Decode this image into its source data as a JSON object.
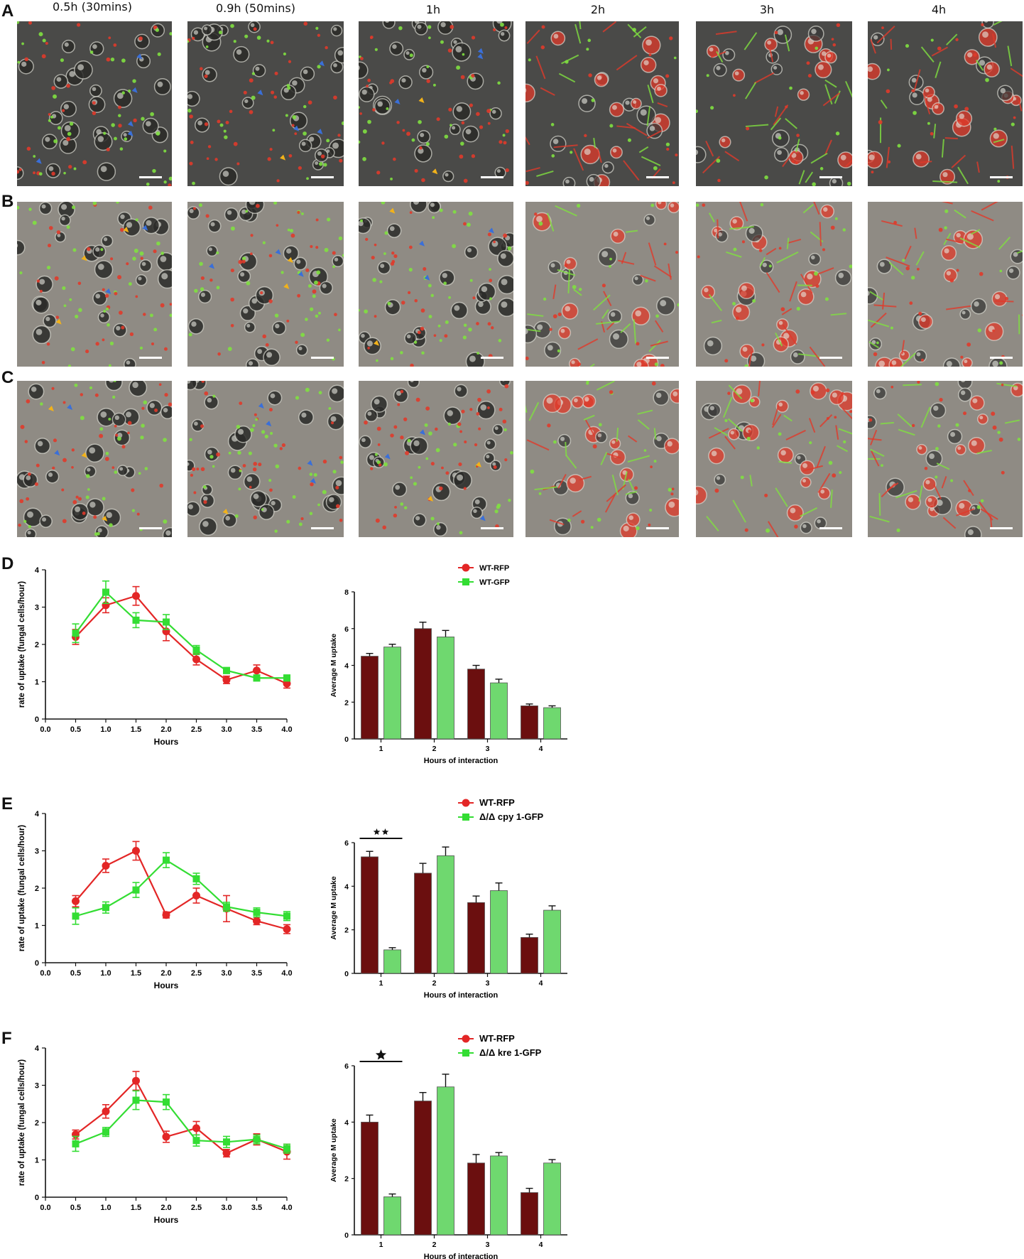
{
  "panel_letters": [
    "A",
    "B",
    "C",
    "D",
    "E",
    "F"
  ],
  "time_labels": [
    "0.5h (30mins)",
    "0.9h (50mins)",
    "1h",
    "2h",
    "3h",
    "4h"
  ],
  "micrograph_colors": {
    "dark_bg": "#4a4a48",
    "light_bg": "#8f8b84",
    "red": "#e03a2a",
    "green": "#7fe040",
    "blue_arrow": "#3a6fd8",
    "yellow_arrow": "#f2b21a"
  },
  "chart_data": [
    {
      "id": "D-line",
      "type": "line",
      "ylabel": "rate of uptake (fungal cells/hour)",
      "xlabel": "Hours",
      "xlim": [
        0,
        4
      ],
      "ylim": [
        0,
        4
      ],
      "xticks": [
        "0.0",
        "0.5",
        "1.0",
        "1.5",
        "2.0",
        "2.5",
        "3.0",
        "3.5",
        "4.0"
      ],
      "yticks": [
        "0",
        "1",
        "2",
        "3",
        "4"
      ],
      "x": [
        0.5,
        1.0,
        1.5,
        2.0,
        2.5,
        3.0,
        3.5,
        4.0
      ],
      "series": [
        {
          "color": "#e32626",
          "marker": "circle",
          "values": [
            2.2,
            3.05,
            3.3,
            2.35,
            1.6,
            1.05,
            1.3,
            0.95
          ],
          "errors": [
            0.2,
            0.2,
            0.25,
            0.25,
            0.15,
            0.1,
            0.15,
            0.12
          ]
        },
        {
          "color": "#33dd33",
          "marker": "square",
          "values": [
            2.3,
            3.4,
            2.65,
            2.6,
            1.85,
            1.3,
            1.1,
            1.1
          ],
          "errors": [
            0.25,
            0.3,
            0.2,
            0.2,
            0.12,
            0.08,
            0.08,
            0.08
          ]
        }
      ]
    },
    {
      "id": "D-bar",
      "type": "bar",
      "ylabel": "Average M uptake",
      "xlabel": "Hours of interaction",
      "categories": [
        "1",
        "2",
        "3",
        "4"
      ],
      "ylim": [
        0,
        8
      ],
      "yticks": [
        "0",
        "2",
        "4",
        "6",
        "8"
      ],
      "legend": [
        "WT-RFP",
        "WT-GFP"
      ],
      "series": [
        {
          "name": "WT-RFP",
          "color": "#6b0f0f",
          "values": [
            4.5,
            6.0,
            3.8,
            1.8
          ],
          "errors": [
            0.15,
            0.35,
            0.2,
            0.1
          ]
        },
        {
          "name": "WT-GFP",
          "color": "#6fd86f",
          "values": [
            5.0,
            5.55,
            3.05,
            1.7
          ],
          "errors": [
            0.15,
            0.35,
            0.2,
            0.1
          ]
        }
      ],
      "significance": []
    },
    {
      "id": "E-line",
      "type": "line",
      "ylabel": "rate of uptake (fungal cells/hour)",
      "xlabel": "Hours",
      "xlim": [
        0,
        4
      ],
      "ylim": [
        0,
        4
      ],
      "xticks": [
        "0.0",
        "0.5",
        "1.0",
        "1.5",
        "2.0",
        "2.5",
        "3.0",
        "3.5",
        "4.0"
      ],
      "yticks": [
        "0",
        "1",
        "2",
        "3",
        "4"
      ],
      "x": [
        0.5,
        1.0,
        1.5,
        2.0,
        2.5,
        3.0,
        3.5,
        4.0
      ],
      "series": [
        {
          "color": "#e32626",
          "marker": "circle",
          "values": [
            1.65,
            2.6,
            3.0,
            1.28,
            1.8,
            1.45,
            1.12,
            0.9
          ],
          "errors": [
            0.15,
            0.18,
            0.25,
            0.08,
            0.2,
            0.35,
            0.1,
            0.12
          ]
        },
        {
          "color": "#33dd33",
          "marker": "square",
          "values": [
            1.25,
            1.48,
            1.95,
            2.75,
            2.25,
            1.5,
            1.35,
            1.25
          ],
          "errors": [
            0.22,
            0.15,
            0.2,
            0.2,
            0.15,
            0.12,
            0.12,
            0.12
          ]
        }
      ]
    },
    {
      "id": "E-bar",
      "type": "bar",
      "ylabel": "Average M uptake",
      "xlabel": "Hours of interaction",
      "categories": [
        "1",
        "2",
        "3",
        "4"
      ],
      "ylim": [
        0,
        6
      ],
      "yticks": [
        "0",
        "2",
        "4",
        "6"
      ],
      "legend": [
        "WT-RFP",
        "Δ/Δ cpy 1-GFP"
      ],
      "series": [
        {
          "name": "WT-RFP",
          "color": "#6b0f0f",
          "values": [
            5.35,
            4.6,
            3.25,
            1.65
          ],
          "errors": [
            0.25,
            0.45,
            0.3,
            0.15
          ]
        },
        {
          "name": "Δ/Δ cpy 1-GFP",
          "color": "#6fd86f",
          "values": [
            1.08,
            5.4,
            3.8,
            2.9
          ],
          "errors": [
            0.1,
            0.4,
            0.35,
            0.2
          ]
        }
      ],
      "significance": [
        {
          "category_index": 0,
          "label": "★★"
        }
      ]
    },
    {
      "id": "F-line",
      "type": "line",
      "ylabel": "rate of uptake (fungal cells/hour)",
      "xlabel": "Hours",
      "xlim": [
        0,
        4
      ],
      "ylim": [
        0,
        4
      ],
      "xticks": [
        "0.0",
        "0.5",
        "1.0",
        "1.5",
        "2.0",
        "2.5",
        "3.0",
        "3.5",
        "4.0"
      ],
      "yticks": [
        "0",
        "1",
        "2",
        "3",
        "4"
      ],
      "x": [
        0.5,
        1.0,
        1.5,
        2.0,
        2.5,
        3.0,
        3.5,
        4.0
      ],
      "series": [
        {
          "color": "#e32626",
          "marker": "circle",
          "values": [
            1.68,
            2.3,
            3.12,
            1.62,
            1.85,
            1.18,
            1.55,
            1.22
          ],
          "errors": [
            0.12,
            0.18,
            0.25,
            0.15,
            0.18,
            0.1,
            0.15,
            0.2
          ]
        },
        {
          "color": "#33dd33",
          "marker": "square",
          "values": [
            1.43,
            1.75,
            2.6,
            2.55,
            1.52,
            1.48,
            1.55,
            1.3
          ],
          "errors": [
            0.2,
            0.12,
            0.25,
            0.2,
            0.15,
            0.15,
            0.12,
            0.12
          ]
        }
      ]
    },
    {
      "id": "F-bar",
      "type": "bar",
      "ylabel": "Average M uptake",
      "xlabel": "Hours of interaction",
      "categories": [
        "1",
        "2",
        "3",
        "4"
      ],
      "ylim": [
        0,
        6
      ],
      "yticks": [
        "0",
        "2",
        "4",
        "6"
      ],
      "legend": [
        "WT-RFP",
        "Δ/Δ kre 1-GFP"
      ],
      "series": [
        {
          "name": "WT-RFP",
          "color": "#6b0f0f",
          "values": [
            4.0,
            4.75,
            2.55,
            1.5
          ],
          "errors": [
            0.25,
            0.3,
            0.3,
            0.15
          ]
        },
        {
          "name": "Δ/Δ kre 1-GFP",
          "color": "#6fd86f",
          "values": [
            1.35,
            5.25,
            2.8,
            2.55
          ],
          "errors": [
            0.1,
            0.45,
            0.12,
            0.12
          ]
        }
      ],
      "significance": [
        {
          "category_index": 0,
          "label": "★"
        }
      ]
    }
  ]
}
